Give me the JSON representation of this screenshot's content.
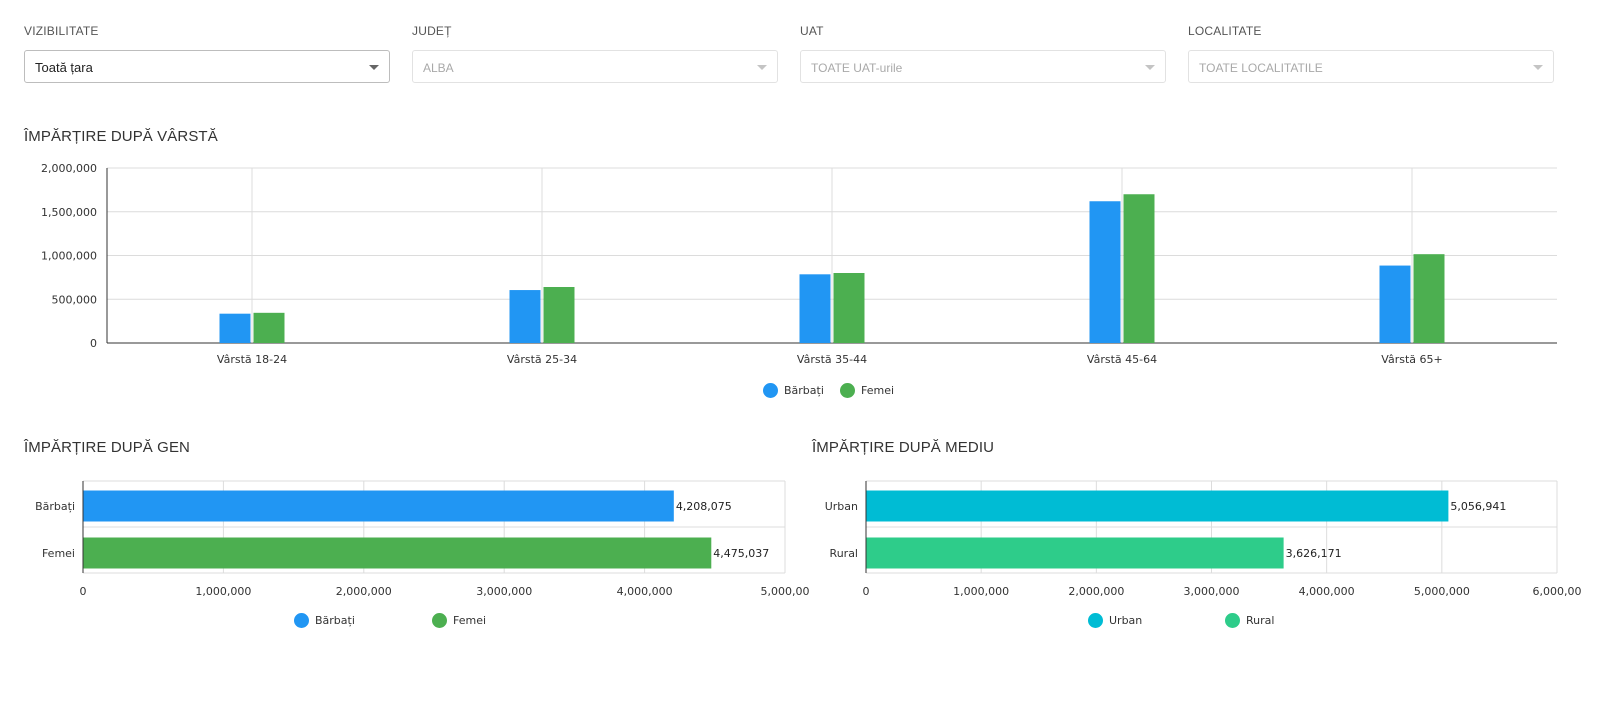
{
  "filters": [
    {
      "label": "VIZIBILITATE",
      "value": "Toată țara",
      "disabled": false
    },
    {
      "label": "JUDEȚ",
      "value": "ALBA",
      "disabled": true
    },
    {
      "label": "UAT",
      "value": "TOATE UAT-urile",
      "disabled": true
    },
    {
      "label": "LOCALITATE",
      "value": "TOATE LOCALITATILE",
      "disabled": true
    }
  ],
  "sections": {
    "age_title": "ÎMPĂRȚIRE DUPĂ VÂRSTĂ",
    "gender_title": "ÎMPĂRȚIRE DUPĂ GEN",
    "environment_title": "ÎMPĂRȚIRE DUPĂ MEDIU"
  },
  "chart_data": [
    {
      "type": "bar",
      "title": "ÎMPĂRȚIRE DUPĂ VÂRSTĂ",
      "orientation": "vertical",
      "categories": [
        "Vârstă 18-24",
        "Vârstă 25-34",
        "Vârstă 35-44",
        "Vârstă 45-64",
        "Vârstă 65+"
      ],
      "series": [
        {
          "name": "Bărbați",
          "color": "#2196f3",
          "values": [
            335000,
            605000,
            785000,
            1620000,
            885000
          ]
        },
        {
          "name": "Femei",
          "color": "#4caf50",
          "values": [
            345000,
            640000,
            800000,
            1700000,
            1015000
          ]
        }
      ],
      "ylim": [
        0,
        2000000
      ],
      "yticks": [
        "0",
        "500,000",
        "1,000,000",
        "1,500,000",
        "2,000,000"
      ],
      "grid": true,
      "legend": "bottom-center"
    },
    {
      "type": "bar",
      "title": "ÎMPĂRȚIRE DUPĂ GEN",
      "orientation": "horizontal",
      "categories": [
        "Bărbați",
        "Femei"
      ],
      "values": [
        4208075,
        4475037
      ],
      "value_labels": [
        "4,208,075",
        "4,475,037"
      ],
      "colors": [
        "#2196f3",
        "#4caf50"
      ],
      "series": [
        {
          "name": "Bărbați",
          "color": "#2196f3"
        },
        {
          "name": "Femei",
          "color": "#4caf50"
        }
      ],
      "xlim": [
        0,
        5000000
      ],
      "xticks": [
        "0",
        "1,000,000",
        "2,000,000",
        "3,000,000",
        "4,000,000",
        "5,000,00"
      ],
      "grid": true,
      "legend": "bottom-center"
    },
    {
      "type": "bar",
      "title": "ÎMPĂRȚIRE DUPĂ MEDIU",
      "orientation": "horizontal",
      "categories": [
        "Urban",
        "Rural"
      ],
      "values": [
        5056941,
        3626171
      ],
      "value_labels": [
        "5,056,941",
        "3,626,171"
      ],
      "colors": [
        "#00bcd4",
        "#2ecc8a"
      ],
      "series": [
        {
          "name": "Urban",
          "color": "#00bcd4"
        },
        {
          "name": "Rural",
          "color": "#2ecc8a"
        }
      ],
      "xlim": [
        0,
        6000000
      ],
      "xticks": [
        "0",
        "1,000,000",
        "2,000,000",
        "3,000,000",
        "4,000,000",
        "5,000,000",
        "6,000,00"
      ],
      "grid": true,
      "legend": "bottom-center"
    }
  ]
}
